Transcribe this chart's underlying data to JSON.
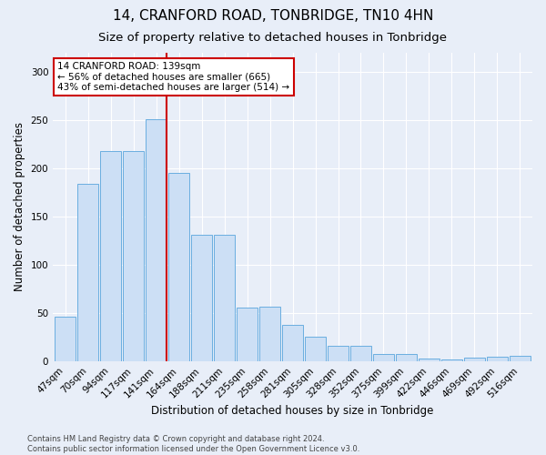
{
  "title": "14, CRANFORD ROAD, TONBRIDGE, TN10 4HN",
  "subtitle": "Size of property relative to detached houses in Tonbridge",
  "xlabel": "Distribution of detached houses by size in Tonbridge",
  "ylabel": "Number of detached properties",
  "categories": [
    "47sqm",
    "70sqm",
    "94sqm",
    "117sqm",
    "141sqm",
    "164sqm",
    "188sqm",
    "211sqm",
    "235sqm",
    "258sqm",
    "281sqm",
    "305sqm",
    "328sqm",
    "352sqm",
    "375sqm",
    "399sqm",
    "422sqm",
    "446sqm",
    "469sqm",
    "492sqm",
    "516sqm"
  ],
  "values": [
    46,
    184,
    218,
    218,
    251,
    195,
    131,
    131,
    56,
    57,
    38,
    26,
    16,
    16,
    8,
    8,
    3,
    2,
    4,
    5,
    6
  ],
  "bar_color": "#ccdff5",
  "bar_edge_color": "#6aaee0",
  "property_line_color": "#cc0000",
  "annotation_text": "14 CRANFORD ROAD: 139sqm\n← 56% of detached houses are smaller (665)\n43% of semi-detached houses are larger (514) →",
  "annotation_box_facecolor": "#ffffff",
  "annotation_box_edgecolor": "#cc0000",
  "ylim": [
    0,
    320
  ],
  "yticks": [
    0,
    50,
    100,
    150,
    200,
    250,
    300
  ],
  "footer_text": "Contains HM Land Registry data © Crown copyright and database right 2024.\nContains public sector information licensed under the Open Government Licence v3.0.",
  "background_color": "#e8eef8",
  "grid_color": "#ffffff",
  "title_fontsize": 11,
  "subtitle_fontsize": 9.5,
  "axis_label_fontsize": 8.5,
  "tick_fontsize": 7.5,
  "footer_fontsize": 6.0
}
